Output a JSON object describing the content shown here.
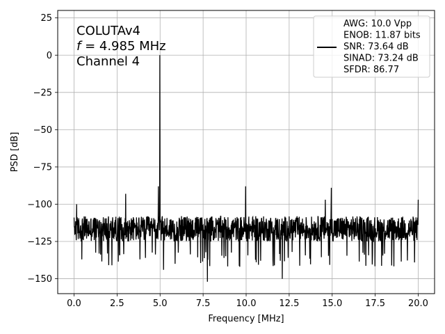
{
  "chart_data": {
    "type": "line",
    "xlabel": "Frequency [MHz]",
    "ylabel": "PSD [dB]",
    "xlim": [
      -0.95,
      20.95
    ],
    "ylim": [
      -160,
      30
    ],
    "xticks": [
      0.0,
      2.5,
      5.0,
      7.5,
      10.0,
      12.5,
      15.0,
      17.5,
      20.0
    ],
    "xtick_labels": [
      "0.0",
      "2.5",
      "5.0",
      "7.5",
      "10.0",
      "12.5",
      "15.0",
      "17.5",
      "20.0"
    ],
    "yticks": [
      25,
      0,
      -25,
      -50,
      -75,
      -100,
      -125,
      -150
    ],
    "ytick_labels": [
      "25",
      "0",
      "−25",
      "−50",
      "−75",
      "−100",
      "−125",
      "−150"
    ],
    "grid": true,
    "annotation": {
      "line1": "COLUTAv4",
      "line2_var": "f",
      "line2_rest": " = 4.985 MHz",
      "line3": "Channel 4"
    },
    "legend": {
      "placement": "top-right",
      "lines": [
        "AWG: 10.0 Vpp",
        "ENOB: 11.87 bits",
        "SNR: 73.64 dB",
        "SINAD: 73.24 dB",
        "SFDR: 86.77"
      ]
    },
    "series": [
      {
        "color": "#000000",
        "noise_floor_mean": -116,
        "noise_band": [
          -125,
          -108
        ],
        "x_range": [
          0.0,
          20.0
        ],
        "peaks": [
          {
            "x": 4.985,
            "y": 0
          },
          {
            "x": 3.0,
            "y": -93
          },
          {
            "x": 4.9,
            "y": -88
          },
          {
            "x": 9.97,
            "y": -88
          },
          {
            "x": 14.95,
            "y": -89
          },
          {
            "x": 14.6,
            "y": -97
          },
          {
            "x": 20.0,
            "y": -97
          },
          {
            "x": 0.15,
            "y": -100
          },
          {
            "x": 7.75,
            "y": -152
          },
          {
            "x": 12.1,
            "y": -150
          },
          {
            "x": 5.2,
            "y": -144
          },
          {
            "x": 0.45,
            "y": -137
          },
          {
            "x": 4.15,
            "y": -136
          }
        ]
      }
    ]
  }
}
